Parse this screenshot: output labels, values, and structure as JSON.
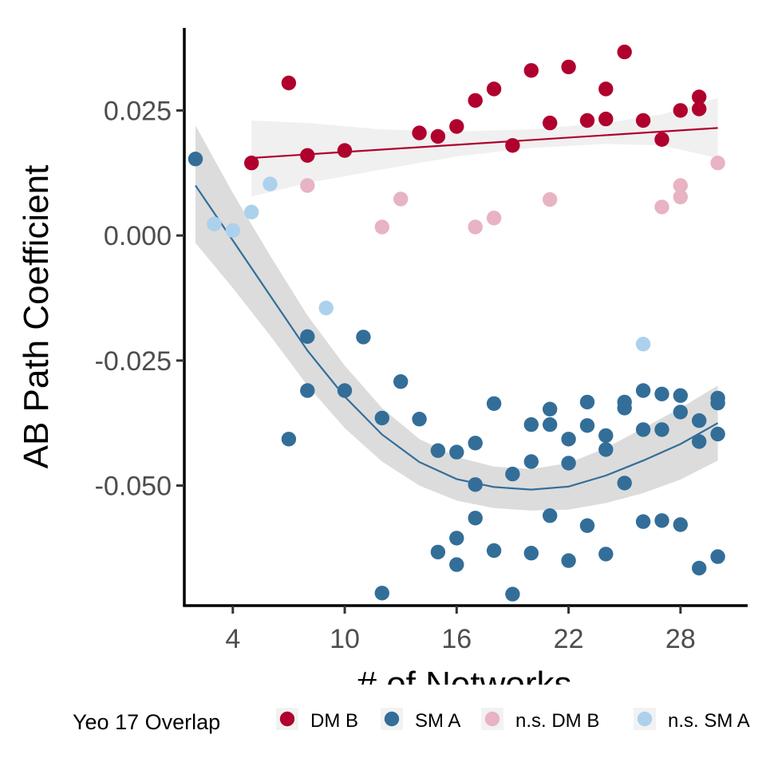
{
  "chart_data": {
    "type": "scatter",
    "xlabel": "# of Networks",
    "ylabel": "AB Path Coefficient",
    "xlim": [
      1.4,
      31.6
    ],
    "ylim": [
      -0.074,
      0.0415
    ],
    "x_ticks": [
      4,
      10,
      16,
      22,
      28
    ],
    "x_tick_labels": [
      "4",
      "10",
      "16",
      "22",
      "28"
    ],
    "y_ticks": [
      0.025,
      0.0,
      -0.025,
      -0.05
    ],
    "y_tick_labels": [
      "0.025",
      "0.000",
      "-0.025",
      "-0.050"
    ],
    "grid": false,
    "legend": {
      "title": "Yeo 17 Overlap",
      "position": "bottom",
      "entries": [
        "DM B",
        "SM A",
        "n.s. DM B",
        "n.s. SM A"
      ]
    },
    "series": [
      {
        "name": "DM B",
        "color": "#b0002d",
        "points": [
          [
            5,
            0.0145
          ],
          [
            7,
            0.0305
          ],
          [
            8,
            0.016
          ],
          [
            10,
            0.017
          ],
          [
            14,
            0.0205
          ],
          [
            15,
            0.0198
          ],
          [
            16,
            0.0218
          ],
          [
            17,
            0.027
          ],
          [
            18,
            0.0293
          ],
          [
            19,
            0.018
          ],
          [
            20,
            0.033
          ],
          [
            21,
            0.0225
          ],
          [
            22,
            0.0337
          ],
          [
            23,
            0.023
          ],
          [
            24,
            0.0233
          ],
          [
            24,
            0.0293
          ],
          [
            25,
            0.0367
          ],
          [
            26,
            0.023
          ],
          [
            27,
            0.0192
          ],
          [
            28,
            0.025
          ],
          [
            29,
            0.0253
          ],
          [
            29,
            0.0277
          ]
        ]
      },
      {
        "name": "SM A",
        "color": "#336e99",
        "points": [
          [
            2,
            0.0153
          ],
          [
            7,
            -0.0407
          ],
          [
            8,
            -0.0202
          ],
          [
            8,
            -0.031
          ],
          [
            10,
            -0.031
          ],
          [
            11,
            -0.0203
          ],
          [
            12,
            -0.0365
          ],
          [
            12,
            -0.0715
          ],
          [
            13,
            -0.0292
          ],
          [
            14,
            -0.0367
          ],
          [
            15,
            -0.043
          ],
          [
            15,
            -0.0633
          ],
          [
            16,
            -0.0433
          ],
          [
            16,
            -0.0605
          ],
          [
            16,
            -0.0658
          ],
          [
            17,
            -0.0415
          ],
          [
            17,
            -0.0498
          ],
          [
            17,
            -0.0565
          ],
          [
            18,
            -0.0336
          ],
          [
            18,
            -0.063
          ],
          [
            19,
            -0.0477
          ],
          [
            19,
            -0.0717
          ],
          [
            20,
            -0.0378
          ],
          [
            20,
            -0.0452
          ],
          [
            20,
            -0.0635
          ],
          [
            21,
            -0.0347
          ],
          [
            21,
            -0.0378
          ],
          [
            21,
            -0.056
          ],
          [
            22,
            -0.0407
          ],
          [
            22,
            -0.0455
          ],
          [
            22,
            -0.065
          ],
          [
            23,
            -0.0333
          ],
          [
            23,
            -0.038
          ],
          [
            23,
            -0.058
          ],
          [
            24,
            -0.04
          ],
          [
            24,
            -0.0428
          ],
          [
            24,
            -0.0637
          ],
          [
            25,
            -0.0333
          ],
          [
            25,
            -0.0345
          ],
          [
            25,
            -0.0495
          ],
          [
            26,
            -0.031
          ],
          [
            26,
            -0.0388
          ],
          [
            26,
            -0.0572
          ],
          [
            27,
            -0.0317
          ],
          [
            27,
            -0.0388
          ],
          [
            27,
            -0.057
          ],
          [
            28,
            -0.032
          ],
          [
            28,
            -0.0353
          ],
          [
            28,
            -0.0578
          ],
          [
            29,
            -0.037
          ],
          [
            29,
            -0.0412
          ],
          [
            29,
            -0.0665
          ],
          [
            30,
            -0.0325
          ],
          [
            30,
            -0.0335
          ],
          [
            30,
            -0.0397
          ],
          [
            30,
            -0.0642
          ]
        ]
      },
      {
        "name": "n.s. DM B",
        "color": "#e8b3c3",
        "points": [
          [
            8,
            0.01
          ],
          [
            12,
            0.0017
          ],
          [
            13,
            0.0073
          ],
          [
            17,
            0.0017
          ],
          [
            18,
            0.0035
          ],
          [
            21,
            0.0072
          ],
          [
            27,
            0.0057
          ],
          [
            28,
            0.0077
          ],
          [
            28,
            0.01
          ],
          [
            30,
            0.0145
          ]
        ]
      },
      {
        "name": "n.s. SM A",
        "color": "#acd1ec",
        "points": [
          [
            3,
            0.0023
          ],
          [
            4,
            0.001
          ],
          [
            5,
            0.0047
          ],
          [
            6,
            0.0103
          ],
          [
            9,
            -0.0145
          ],
          [
            26,
            -0.0217
          ]
        ]
      }
    ],
    "fits": [
      {
        "series": "DM B",
        "method": "linear",
        "color": "#b0002d",
        "band_color": "#f0f0f0",
        "curve": [
          [
            5,
            0.0155
          ],
          [
            30,
            0.0215
          ]
        ],
        "band_upper": [
          [
            5,
            0.023
          ],
          [
            8,
            0.0225
          ],
          [
            12,
            0.0212
          ],
          [
            16,
            0.0208
          ],
          [
            20,
            0.0212
          ],
          [
            24,
            0.0225
          ],
          [
            27,
            0.0242
          ],
          [
            30,
            0.0275
          ]
        ],
        "band_lower": [
          [
            5,
            0.0078
          ],
          [
            8,
            0.0105
          ],
          [
            12,
            0.0132
          ],
          [
            16,
            0.0158
          ],
          [
            20,
            0.0175
          ],
          [
            24,
            0.0183
          ],
          [
            27,
            0.018
          ],
          [
            30,
            0.0155
          ]
        ]
      },
      {
        "series": "SM A",
        "method": "loess",
        "color": "#336e99",
        "band_color": "#dcdcdc",
        "curve": [
          [
            2,
            0.01
          ],
          [
            4,
            -0.001
          ],
          [
            6,
            -0.012
          ],
          [
            8,
            -0.023
          ],
          [
            10,
            -0.0322
          ],
          [
            12,
            -0.0398
          ],
          [
            14,
            -0.0453
          ],
          [
            16,
            -0.0487
          ],
          [
            18,
            -0.0503
          ],
          [
            20,
            -0.0508
          ],
          [
            22,
            -0.0502
          ],
          [
            24,
            -0.048
          ],
          [
            26,
            -0.045
          ],
          [
            28,
            -0.0417
          ],
          [
            30,
            -0.0375
          ]
        ],
        "band_upper": [
          [
            2,
            0.022
          ],
          [
            4,
            0.0085
          ],
          [
            6,
            -0.004
          ],
          [
            8,
            -0.016
          ],
          [
            10,
            -0.026
          ],
          [
            12,
            -0.0345
          ],
          [
            14,
            -0.0407
          ],
          [
            16,
            -0.0443
          ],
          [
            18,
            -0.0462
          ],
          [
            20,
            -0.0467
          ],
          [
            22,
            -0.0455
          ],
          [
            24,
            -0.0425
          ],
          [
            26,
            -0.0385
          ],
          [
            28,
            -0.0345
          ],
          [
            30,
            -0.03
          ]
        ],
        "band_lower": [
          [
            2,
            -0.0015
          ],
          [
            4,
            -0.0105
          ],
          [
            6,
            -0.02
          ],
          [
            8,
            -0.03
          ],
          [
            10,
            -0.0385
          ],
          [
            12,
            -0.0452
          ],
          [
            14,
            -0.05
          ],
          [
            16,
            -0.053
          ],
          [
            18,
            -0.0545
          ],
          [
            20,
            -0.055
          ],
          [
            22,
            -0.0548
          ],
          [
            24,
            -0.0535
          ],
          [
            26,
            -0.0515
          ],
          [
            28,
            -0.0488
          ],
          [
            30,
            -0.045
          ]
        ]
      }
    ]
  }
}
